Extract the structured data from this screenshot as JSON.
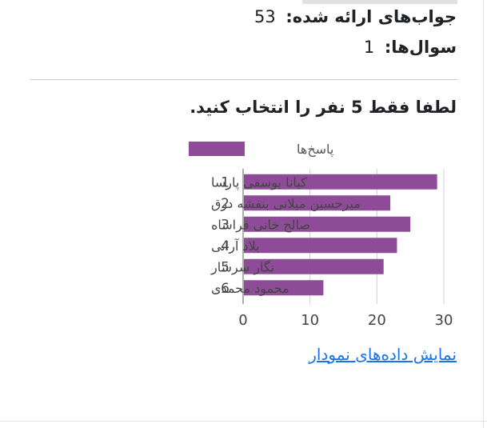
{
  "summary": {
    "responses_label": "جواب‌های ارائه شده:",
    "responses_value": "53",
    "questions_label": "سوال‌ها:",
    "questions_value": "1"
  },
  "question": {
    "title": "لطفا فقط 5 نفر را انتخاب کنید."
  },
  "show_data_link": "نمایش داده‌های نمودار",
  "colors": {
    "bar": "#8e4b97",
    "link": "#1a73e8",
    "axis": "#777777",
    "grid": "#d0d0d0"
  },
  "chart_data": {
    "type": "bar",
    "orientation": "horizontal",
    "legend": {
      "position": "top",
      "label": "پاسخ‌ها"
    },
    "categories": [
      {
        "index": "1",
        "name": "کیانا یوسفی پارسا"
      },
      {
        "index": "2",
        "name": "میرحسین میلانی بنفشه درق"
      },
      {
        "index": "3",
        "name": "صالح خانی فراشاه"
      },
      {
        "index": "4",
        "name": "یلاد آرانی"
      },
      {
        "index": "5",
        "name": "نگار سرشار"
      },
      {
        "index": "6",
        "name": "محمود محمدی"
      }
    ],
    "series": [
      {
        "name": "پاسخ‌ها",
        "values": [
          29,
          22,
          25,
          23,
          21,
          12
        ]
      }
    ],
    "xlim": [
      0,
      30
    ],
    "xticks": [
      "0",
      "10",
      "20",
      "30"
    ],
    "grid": true
  }
}
